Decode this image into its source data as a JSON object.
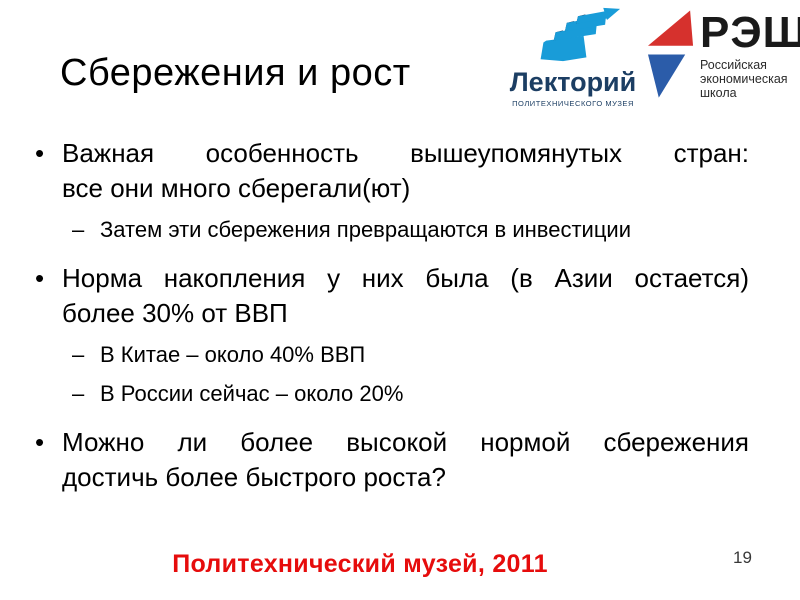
{
  "slide": {
    "title": "Сбережения и рост",
    "footer": "Политехнический музей, 2011",
    "page_number": "19",
    "bullet_marker_main": "•",
    "bullet_marker_sub": "–",
    "bullets": [
      {
        "level": 1,
        "lines": [
          "Важная особенность вышеупомянутых стран:",
          "все они много сберегали(ют)"
        ]
      },
      {
        "level": 2,
        "lines": [
          "Затем эти сбережения превращаются в инвестиции"
        ]
      },
      {
        "level": 1,
        "lines": [
          "Норма накопления у них была (в Азии остается)",
          "более 30% от ВВП"
        ]
      },
      {
        "level": 2,
        "lines": [
          "В Китае – около 40% ВВП"
        ]
      },
      {
        "level": 2,
        "lines": [
          "В России сейчас – около 20%"
        ]
      },
      {
        "level": 1,
        "lines": [
          "Можно ли более высокой нормой сбережения",
          "достичь более быстрого роста?"
        ]
      }
    ]
  },
  "logos": {
    "lektorium": {
      "name": "Лекторий",
      "subtitle": "ПОЛИТЕХНИЧЕСКОГО МУЗЕЯ",
      "icon": "ascending-stairs-arrow-icon"
    },
    "nes": {
      "name": "РЭШ",
      "subtitle_lines": [
        "Российская",
        "экономическая",
        "школа"
      ],
      "icon": "red-blue-triangles-icon"
    }
  },
  "colors": {
    "footer_red": "#e60c0c",
    "lektorium_navy": "#1c3e63",
    "lektorium_blue": "#199cd8",
    "nes_red": "#d6312d",
    "nes_blue": "#2b5ca9",
    "text_black": "#000000"
  }
}
